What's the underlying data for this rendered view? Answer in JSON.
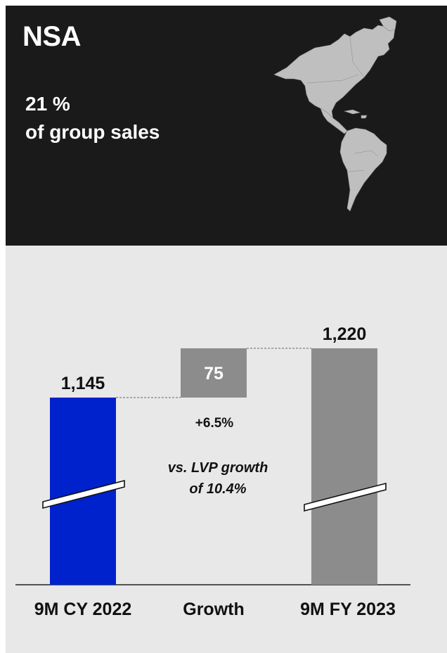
{
  "header": {
    "title": "NSA",
    "share_value": "21 %",
    "share_label": "of group sales",
    "map_icon": "americas-map-icon"
  },
  "colors": {
    "header_bg": "#1a1a1a",
    "panel_bg": "#e8e8e8",
    "bar_2022": "#0022cc",
    "bar_growth": "#8c8c8c",
    "bar_2023": "#8c8c8c"
  },
  "chart_data": {
    "type": "bar",
    "subtype": "waterfall",
    "categories": [
      "9M CY 2022",
      "Growth",
      "9M FY 2023"
    ],
    "values": [
      1145,
      75,
      1220
    ],
    "value_labels": [
      "1,145",
      "75",
      "1,220"
    ],
    "growth_pct_label": "+6.5%",
    "annotation_line1": "vs. LVP growth",
    "annotation_line2": "of 10.4%",
    "axis_break": true,
    "ylim": [
      1000,
      1250
    ]
  }
}
